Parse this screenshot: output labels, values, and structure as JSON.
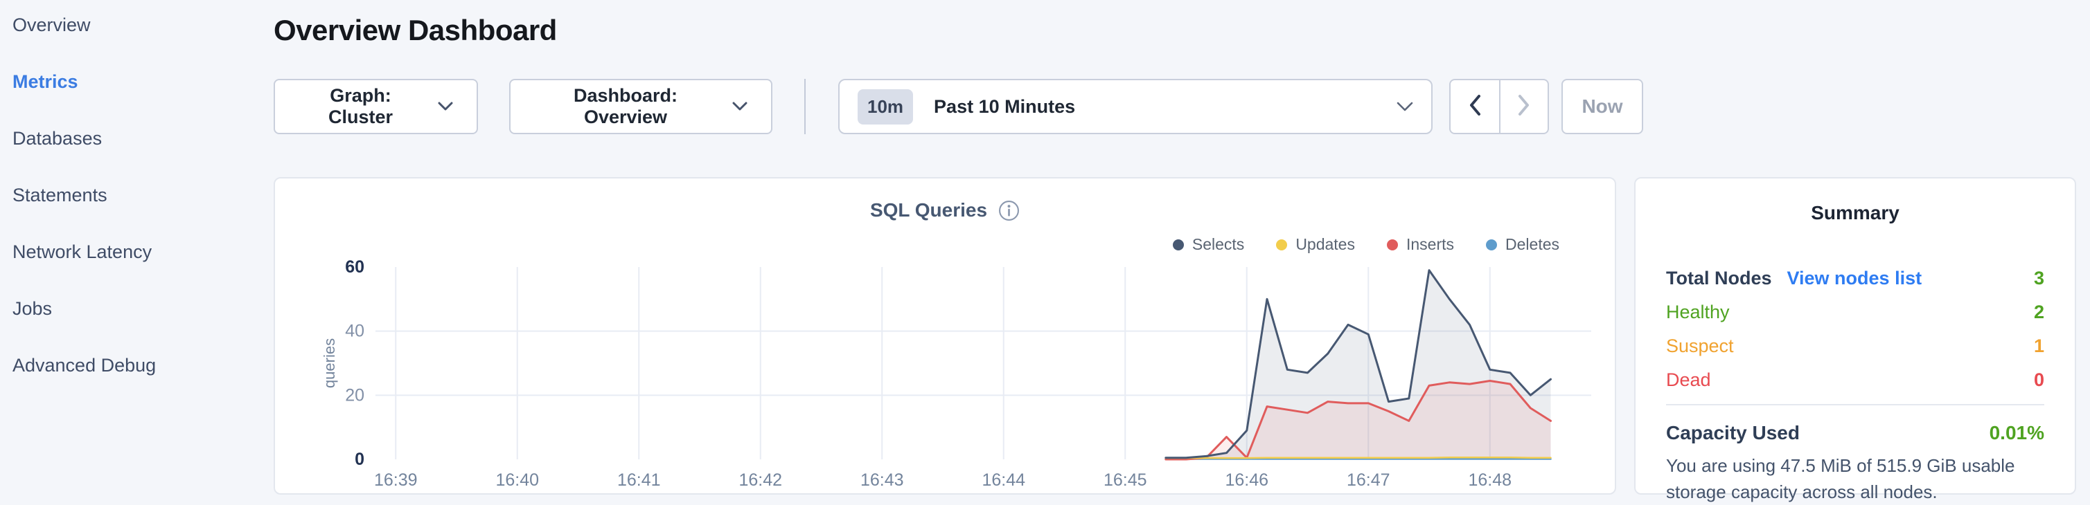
{
  "sidebar": {
    "items": [
      {
        "label": "Overview",
        "active": false
      },
      {
        "label": "Metrics",
        "active": true
      },
      {
        "label": "Databases",
        "active": false
      },
      {
        "label": "Statements",
        "active": false
      },
      {
        "label": "Network Latency",
        "active": false
      },
      {
        "label": "Jobs",
        "active": false
      },
      {
        "label": "Advanced Debug",
        "active": false
      }
    ]
  },
  "header": {
    "title": "Overview Dashboard"
  },
  "controls": {
    "graph_label": "Graph: Cluster",
    "dashboard_label": "Dashboard: Overview",
    "time_badge": "10m",
    "time_label": "Past 10 Minutes",
    "now_label": "Now"
  },
  "summary": {
    "title": "Summary",
    "rows": [
      {
        "label": "Total Nodes",
        "link": "View nodes list",
        "value": "3",
        "label_color": "#2f3e56",
        "value_color": "#4fa321",
        "bold": true
      },
      {
        "label": "Healthy",
        "value": "2",
        "label_color": "#4fa321",
        "value_color": "#4fa321",
        "bold": false
      },
      {
        "label": "Suspect",
        "value": "1",
        "label_color": "#f0a22f",
        "value_color": "#f0a22f",
        "bold": false
      },
      {
        "label": "Dead",
        "value": "0",
        "label_color": "#e84a50",
        "value_color": "#e84a50",
        "bold": false
      }
    ],
    "capacity": {
      "label": "Capacity Used",
      "value": "0.01%",
      "value_color": "#4fa321",
      "description": "You are using 47.5 MiB of 515.9 GiB usable storage capacity across all nodes."
    }
  },
  "chart_data": {
    "type": "area",
    "title": "SQL Queries",
    "ylabel": "queries",
    "ylim": [
      0,
      60
    ],
    "y_ticks": [
      0,
      20,
      40,
      60
    ],
    "x_ticks": [
      "16:39",
      "16:40",
      "16:41",
      "16:42",
      "16:43",
      "16:44",
      "16:45",
      "16:46",
      "16:47",
      "16:48"
    ],
    "tick_interval_seconds": 60,
    "data_start_offset_seconds": 380,
    "data_step_seconds": 10,
    "legend_position": "top-right",
    "grid": true,
    "series": [
      {
        "name": "Selects",
        "color": "#475872",
        "fill": "rgba(71,88,114,0.11)",
        "width": 3,
        "values": [
          0.5,
          0.5,
          1,
          2,
          9,
          50,
          28,
          27,
          33,
          42,
          39,
          18,
          19,
          59,
          50,
          42,
          28,
          27,
          20,
          25
        ]
      },
      {
        "name": "Updates",
        "color": "#f2cd4b",
        "fill": null,
        "width": 2.5,
        "values": [
          0.4,
          0.4,
          0.4,
          0.4,
          0.4,
          0.5,
          0.5,
          0.5,
          0.5,
          0.5,
          0.5,
          0.5,
          0.5,
          0.5,
          0.6,
          0.6,
          0.6,
          0.6,
          0.5,
          0.5
        ]
      },
      {
        "name": "Inserts",
        "color": "#e05c5c",
        "fill": "rgba(224,92,92,0.10)",
        "width": 3,
        "values": [
          0,
          0,
          0.5,
          7,
          0.5,
          16.5,
          15.5,
          14.5,
          18,
          17.5,
          17.5,
          15,
          12,
          23,
          24,
          23.5,
          24.5,
          23.5,
          16,
          12
        ]
      },
      {
        "name": "Deletes",
        "color": "#5e9ccc",
        "fill": null,
        "width": 2.5,
        "values": [
          0.1,
          0.1,
          0.1,
          0.1,
          0.1,
          0.1,
          0.1,
          0.1,
          0.1,
          0.1,
          0.1,
          0.1,
          0.1,
          0.1,
          0.1,
          0.1,
          0.1,
          0.1,
          0.1,
          0.1
        ]
      }
    ]
  },
  "colors": {
    "accent_blue": "#3b7ce2",
    "link_blue": "#2e7cf2",
    "healthy_green": "#4fa321",
    "suspect_orange": "#f0a22f",
    "dead_red": "#e84a50",
    "grid": "#e8ecf4",
    "tick_muted": "#8290a7",
    "tick_bold": "#223252"
  }
}
